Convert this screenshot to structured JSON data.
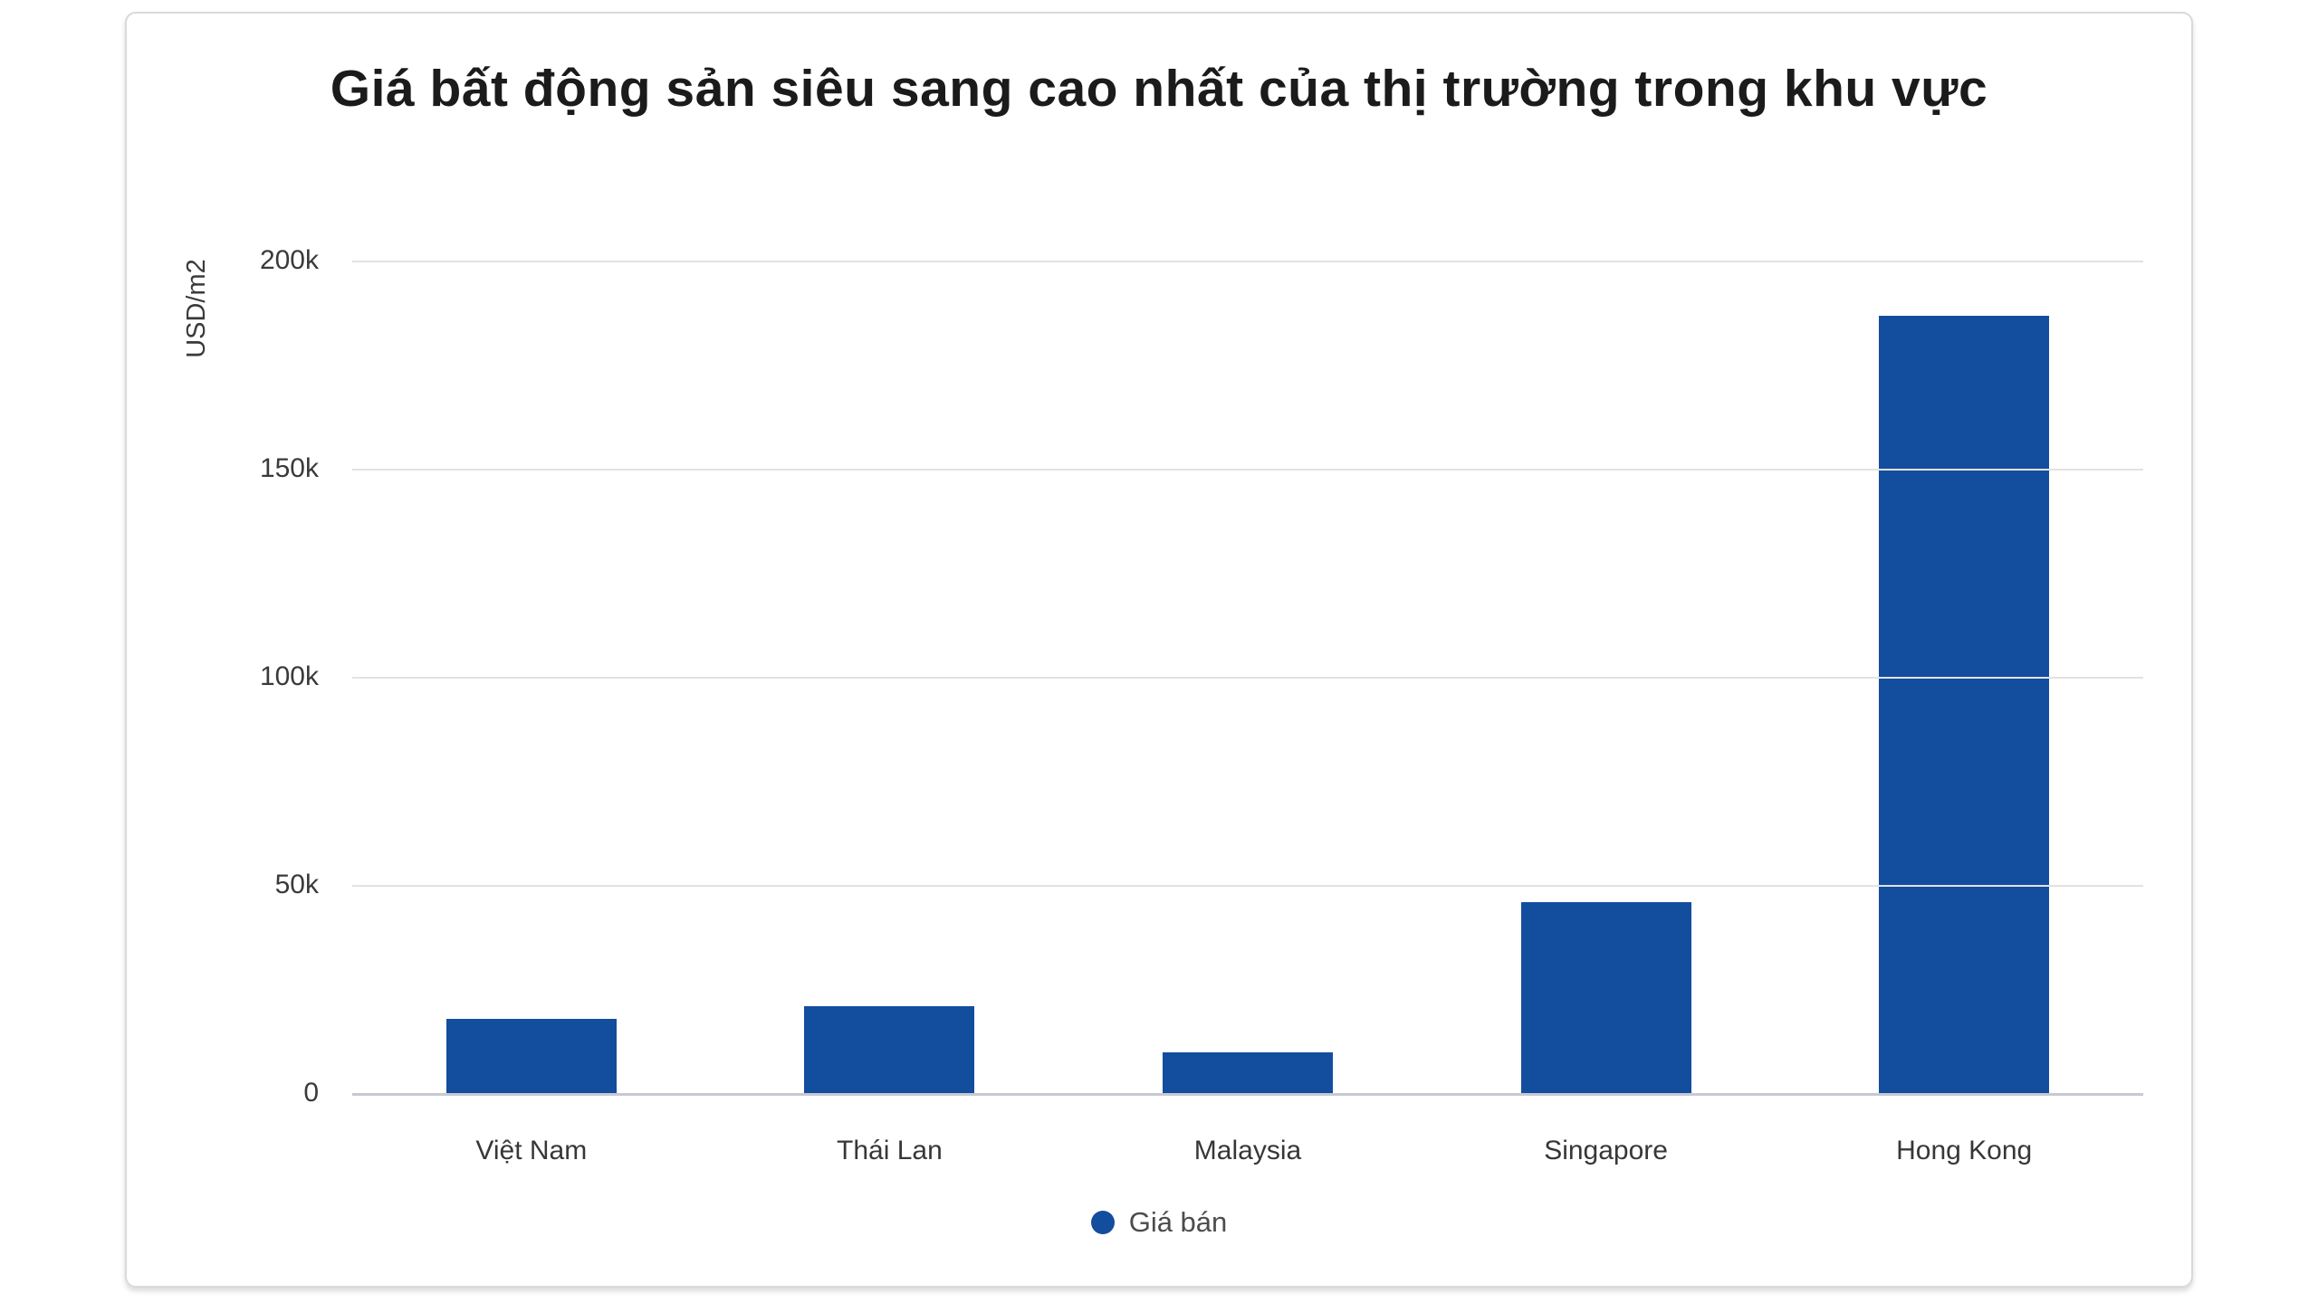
{
  "chart_data": {
    "type": "bar",
    "title": "Giá bất động sản siêu sang cao nhất của thị trường trong khu vực",
    "ylabel": "USD/m2",
    "xlabel": "",
    "categories": [
      "Việt Nam",
      "Thái Lan",
      "Malaysia",
      "Singapore",
      "Hong Kong"
    ],
    "series": [
      {
        "name": "Giá bán",
        "values": [
          18000,
          21000,
          10000,
          46000,
          187000
        ],
        "color": "#134d9e"
      }
    ],
    "ylim": [
      0,
      200000
    ],
    "yticks": [
      {
        "value": 0,
        "label": "0"
      },
      {
        "value": 50000,
        "label": "50k"
      },
      {
        "value": 100000,
        "label": "100k"
      },
      {
        "value": 150000,
        "label": "150k"
      },
      {
        "value": 200000,
        "label": "200k"
      }
    ],
    "grid": true,
    "legend_position": "bottom"
  },
  "colors": {
    "bar": "#134d9e",
    "gridline": "#e2e2e2",
    "baseline": "#c9c9d3",
    "title_text": "#1b1b1b",
    "axis_text": "#3a3a3a",
    "legend_text": "#4c4c4c",
    "card_border": "#d9d9d9",
    "background": "#ffffff"
  }
}
